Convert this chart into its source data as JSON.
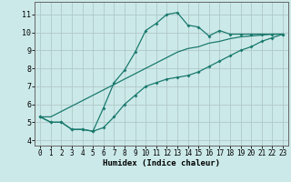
{
  "xlabel": "Humidex (Indice chaleur)",
  "background_color": "#cce9e9",
  "grid_color": "#b0c8c8",
  "line_color": "#1a7a6e",
  "xlim": [
    -0.5,
    23.5
  ],
  "ylim": [
    3.7,
    11.7
  ],
  "x_ticks": [
    0,
    1,
    2,
    3,
    4,
    5,
    6,
    7,
    8,
    9,
    10,
    11,
    12,
    13,
    14,
    15,
    16,
    17,
    18,
    19,
    20,
    21,
    22,
    23
  ],
  "y_ticks": [
    4,
    5,
    6,
    7,
    8,
    9,
    10,
    11
  ],
  "series1": [
    5.3,
    5.0,
    5.0,
    4.6,
    4.6,
    4.5,
    5.8,
    7.2,
    7.9,
    8.9,
    10.1,
    10.5,
    11.0,
    11.1,
    10.4,
    10.3,
    9.8,
    10.1,
    9.9,
    9.9,
    9.9,
    9.9,
    9.9,
    9.9
  ],
  "series2": [
    5.3,
    5.0,
    5.0,
    4.6,
    4.6,
    4.5,
    4.7,
    5.3,
    6.0,
    6.5,
    7.0,
    7.2,
    7.4,
    7.5,
    7.6,
    7.8,
    8.1,
    8.4,
    8.7,
    9.0,
    9.2,
    9.5,
    9.7,
    9.9
  ],
  "series3": [
    5.3,
    5.3,
    5.6,
    5.9,
    6.2,
    6.5,
    6.8,
    7.1,
    7.4,
    7.7,
    8.0,
    8.3,
    8.6,
    8.9,
    9.1,
    9.2,
    9.4,
    9.5,
    9.65,
    9.75,
    9.8,
    9.85,
    9.9,
    9.9
  ]
}
